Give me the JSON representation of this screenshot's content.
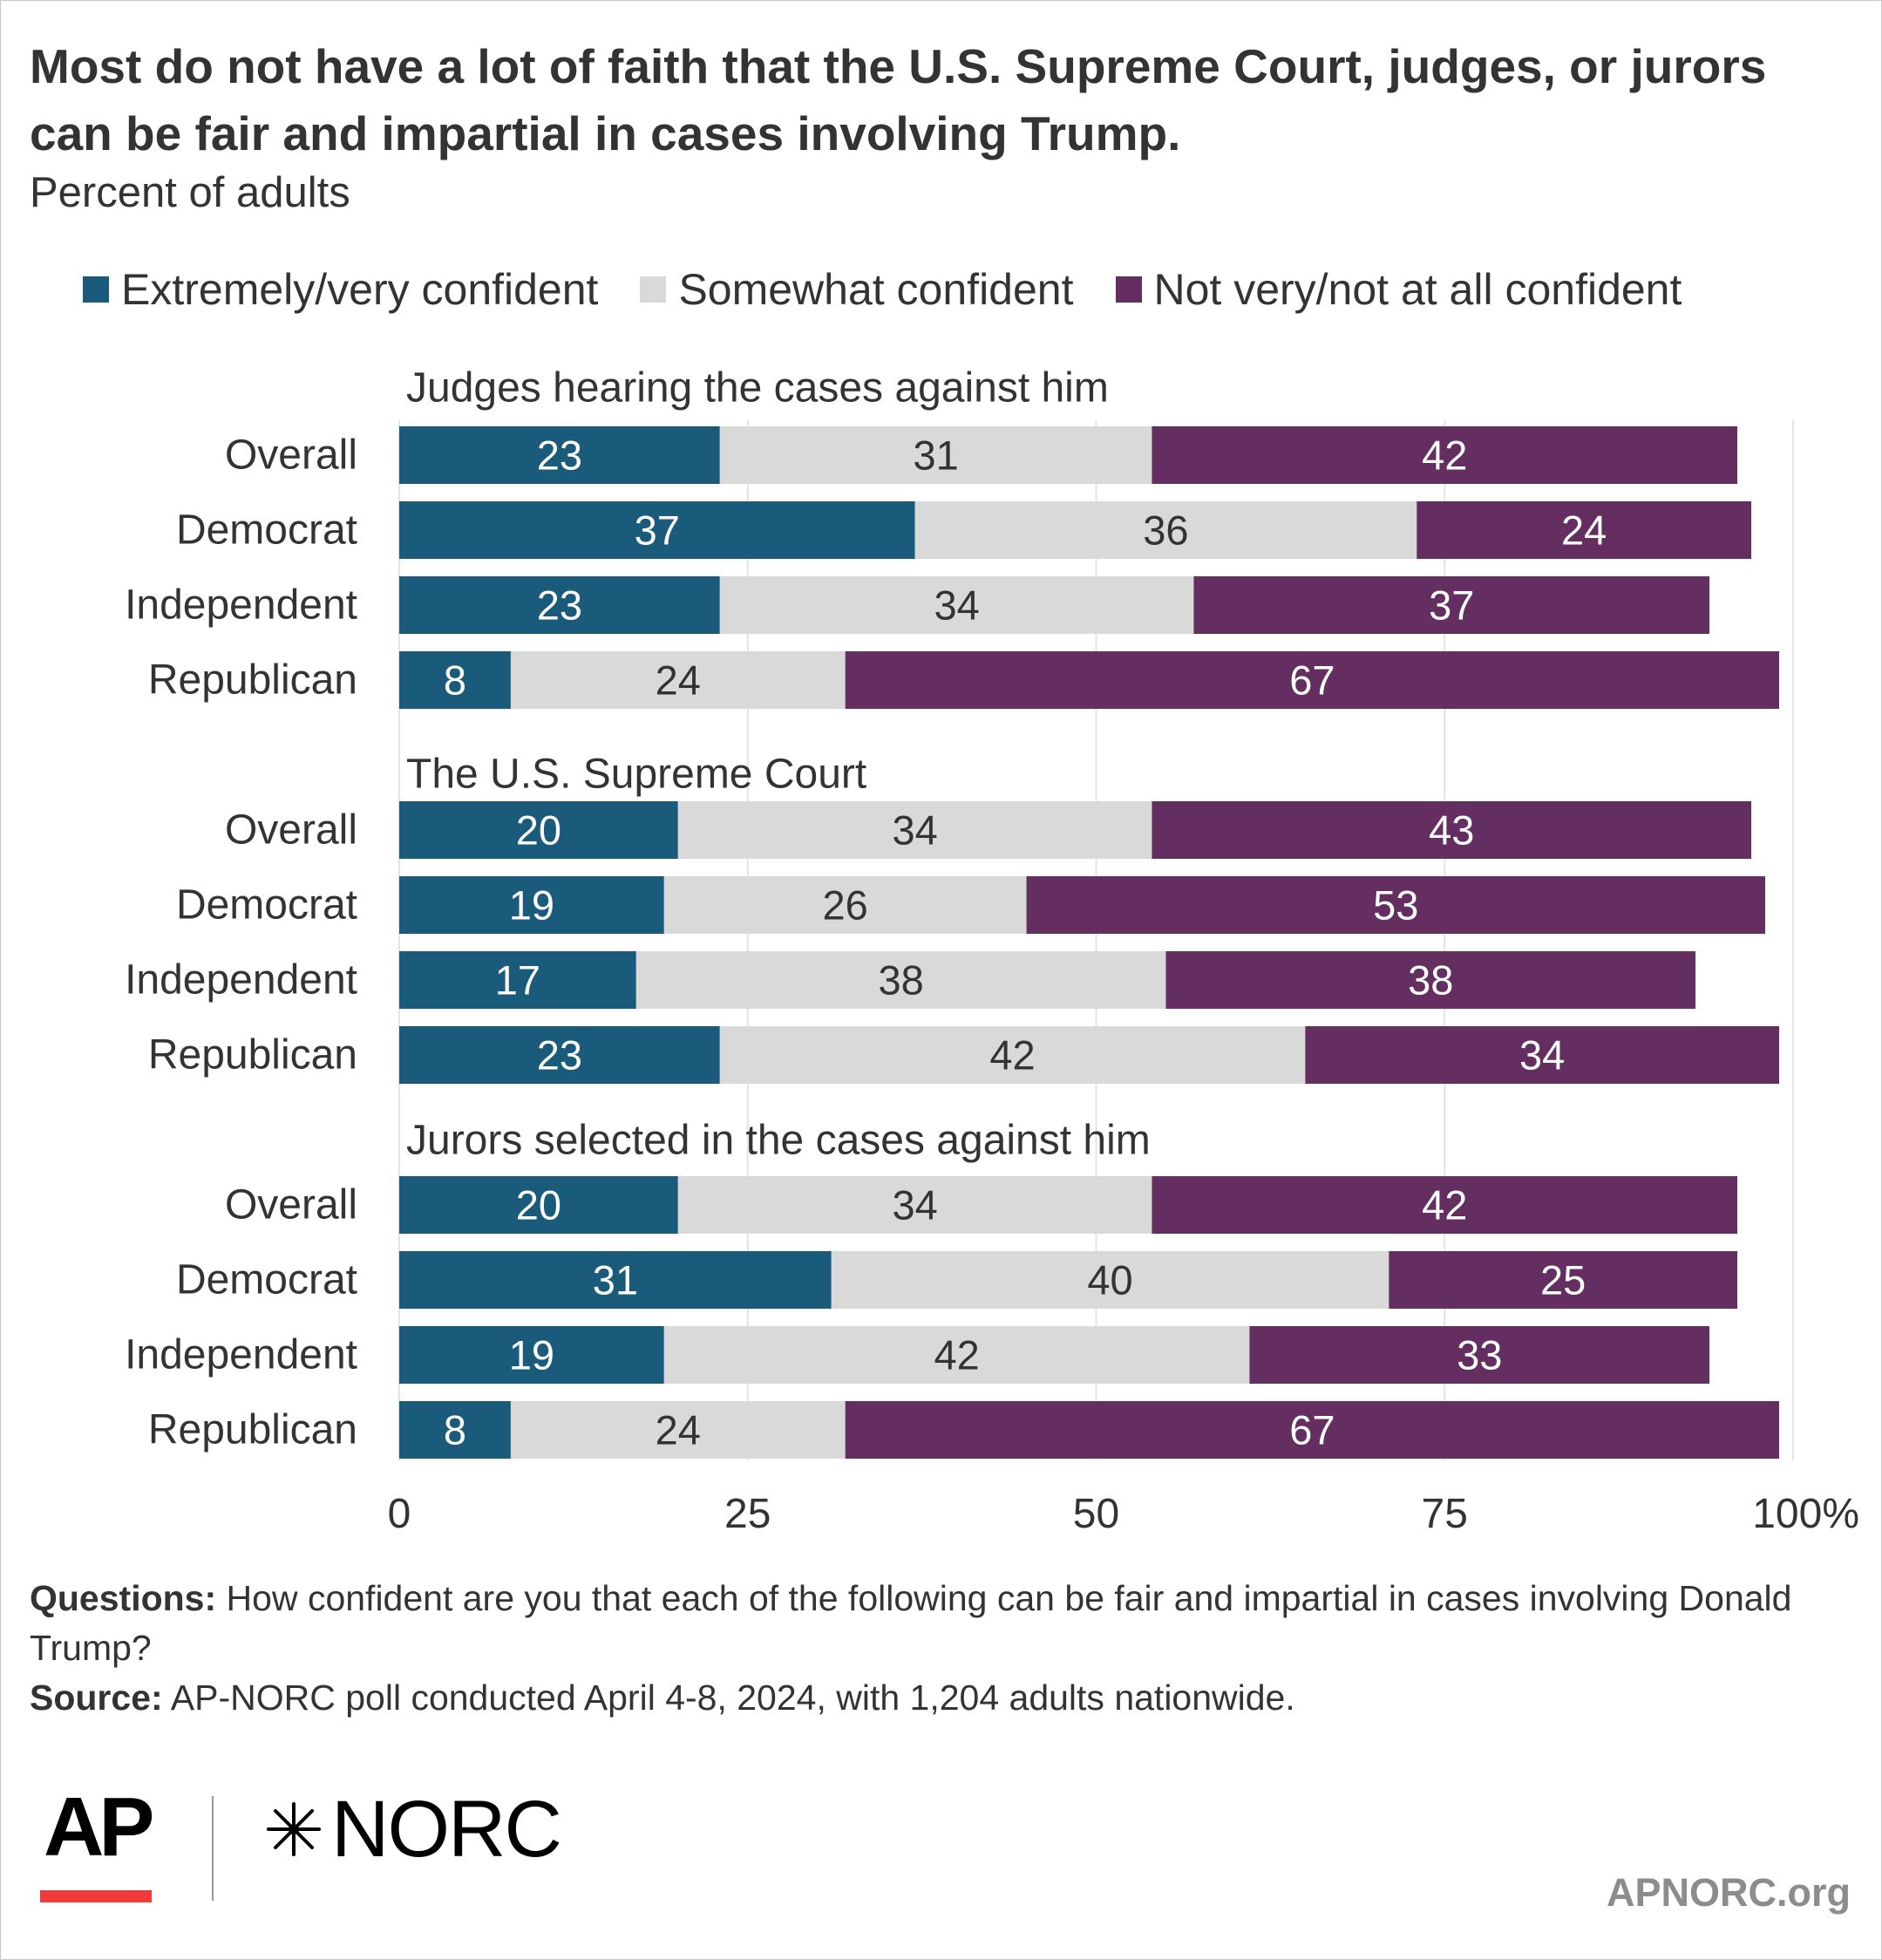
{
  "title": "Most do not have a lot of faith that the U.S. Supreme Court, judges, or jurors can be fair and impartial in cases involving Trump.",
  "subtitle": "Percent of adults",
  "legend": [
    {
      "label": "Extremely/very confident",
      "color": "#1a5a7a"
    },
    {
      "label": "Somewhat confident",
      "color": "#d9d9d9"
    },
    {
      "label": "Not very/not at all confident",
      "color": "#652e60"
    }
  ],
  "chart_data": {
    "type": "bar",
    "orientation": "horizontal",
    "stacked": true,
    "xlim": [
      0,
      100
    ],
    "x_ticks": [
      "0",
      "25",
      "50",
      "75",
      "100%"
    ],
    "grid": true,
    "legend_position": "top",
    "series_names": [
      "Extremely/very confident",
      "Somewhat confident",
      "Not very/not at all confident"
    ],
    "groups": [
      {
        "title": "Judges hearing the cases against him",
        "rows": [
          {
            "label": "Overall",
            "values": [
              23,
              31,
              42
            ]
          },
          {
            "label": "Democrat",
            "values": [
              37,
              36,
              24
            ]
          },
          {
            "label": "Independent",
            "values": [
              23,
              34,
              37
            ]
          },
          {
            "label": "Republican",
            "values": [
              8,
              24,
              67
            ]
          }
        ]
      },
      {
        "title": "The U.S. Supreme Court",
        "rows": [
          {
            "label": "Overall",
            "values": [
              20,
              34,
              43
            ]
          },
          {
            "label": "Democrat",
            "values": [
              19,
              26,
              53
            ]
          },
          {
            "label": "Independent",
            "values": [
              17,
              38,
              38
            ]
          },
          {
            "label": "Republican",
            "values": [
              23,
              42,
              34
            ]
          }
        ]
      },
      {
        "title": "Jurors selected in the cases against him",
        "rows": [
          {
            "label": "Overall",
            "values": [
              20,
              34,
              42
            ]
          },
          {
            "label": "Democrat",
            "values": [
              31,
              40,
              25
            ]
          },
          {
            "label": "Independent",
            "values": [
              19,
              42,
              33
            ]
          },
          {
            "label": "Republican",
            "values": [
              8,
              24,
              67
            ]
          }
        ]
      }
    ]
  },
  "footnote": {
    "questions_label": "Questions:",
    "questions_text": " How confident are you that each of the following can be fair and impartial in cases involving Donald Trump?",
    "source_label": "Source:",
    "source_text": " AP-NORC poll conducted April 4-8, 2024, with 1,204 adults nationwide."
  },
  "logos": {
    "ap": "AP",
    "norc": "NORC",
    "norc_mark_icon": "norc-star-icon"
  },
  "site": "APNORC.org"
}
